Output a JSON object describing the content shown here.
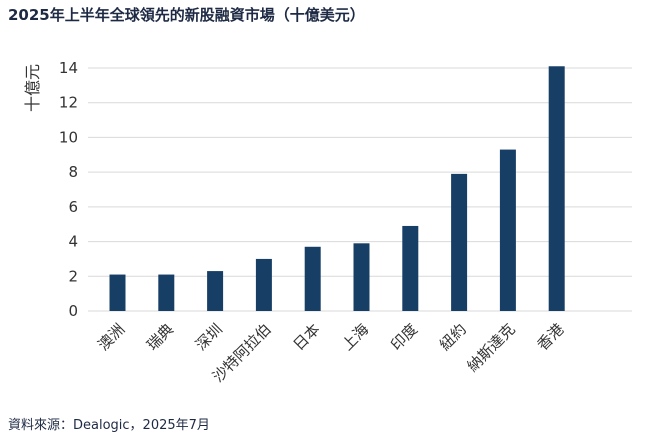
{
  "chart_data": {
    "type": "bar",
    "title": "2025年上半年全球領先的新股融資市場（十億美元）",
    "ylabel": "十億元",
    "xlabel": "",
    "categories": [
      "澳洲",
      "瑞典",
      "深圳",
      "沙特阿拉伯",
      "日本",
      "上海",
      "印度",
      "紐約",
      "納斯達克",
      "香港"
    ],
    "values": [
      2.1,
      2.1,
      2.3,
      3.0,
      3.7,
      3.9,
      4.9,
      7.9,
      9.3,
      14.1
    ],
    "ylim": [
      0,
      14
    ],
    "yticks": [
      0,
      2,
      4,
      6,
      8,
      10,
      12,
      14
    ],
    "grid": true,
    "bar_color": "#173f66",
    "grid_color": "#d9d9d9"
  },
  "source": "資料來源：Dealogic，2025年7月"
}
